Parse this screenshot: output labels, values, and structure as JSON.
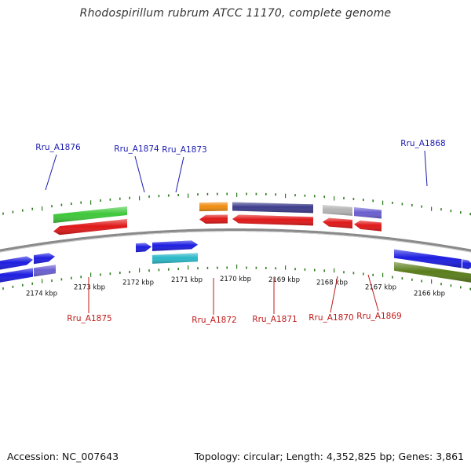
{
  "title": "Rhodospirillum rubrum ATCC 11170, complete genome",
  "footer": {
    "accession": "Accession: NC_007643",
    "stats": "Topology: circular; Length: 4,352,825 bp; Genes: 3,861"
  },
  "colors": {
    "backbone": "#8a8a8a",
    "tick": "#2e7d1e",
    "label_forward": "#1a1ab0",
    "label_reverse": "#c01818"
  },
  "kbp_ticks": [
    "2174 kbp",
    "2173 kbp",
    "2172 kbp",
    "2171 kbp",
    "2170 kbp",
    "2169 kbp",
    "2168 kbp",
    "2167 kbp",
    "2166 kbp"
  ],
  "gene_labels": {
    "forward": [
      "Rru_A1876",
      "Rru_A1874",
      "Rru_A1873",
      "Rru_A1868"
    ],
    "reverse": [
      "Rru_A1875",
      "Rru_A1872",
      "Rru_A1871",
      "Rru_A1870",
      "Rru_A1869"
    ]
  },
  "gene_colors": {
    "forward_track": [
      "#1d1de0",
      "#1d1de0",
      "#1d1de0",
      "#1d1de0",
      "#1d1de0",
      "#1d1de0"
    ],
    "forward_outer": [
      "#1d1de0",
      "#6a5fd0",
      "#2ab8c8",
      "#5a7d1a"
    ],
    "reverse_track": [
      "#e01818",
      "#e01818",
      "#e01818",
      "#e01818",
      "#e01818"
    ],
    "reverse_outer": [
      "#3ec83a",
      "#f08c10",
      "#3c3c8c",
      "#b4b4b4",
      "#6a5fd0"
    ]
  }
}
